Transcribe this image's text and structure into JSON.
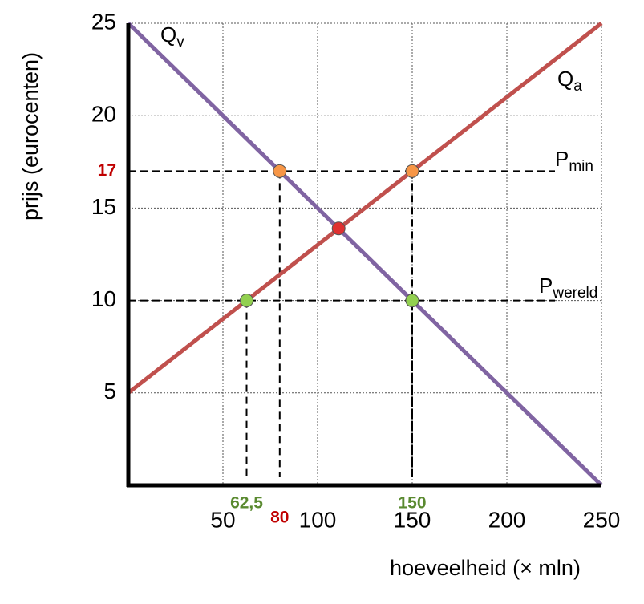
{
  "chart_data": {
    "type": "line",
    "x_label": "hoeveelheid (× mln)",
    "y_label": "prijs (eurocenten)",
    "xlim": [
      0,
      250
    ],
    "xticks": [
      50,
      100,
      150,
      200,
      250
    ],
    "ylim": [
      0,
      25
    ],
    "yticks": [
      5,
      10,
      15,
      20,
      25
    ],
    "grid": true,
    "series": [
      {
        "name": "Q",
        "subscript": "v",
        "color": "#8064a2",
        "x": [
          0,
          250
        ],
        "values": [
          25,
          0
        ]
      },
      {
        "name": "Q",
        "subscript": "a",
        "color": "#c0504d",
        "x": [
          0,
          250
        ],
        "values": [
          5,
          25
        ]
      }
    ],
    "price_lines": [
      {
        "name": "P",
        "subscript": "min",
        "value": 17
      },
      {
        "name": "P",
        "subscript": "wereld",
        "value": 10
      }
    ],
    "points": [
      {
        "x": 80,
        "y": 17,
        "color": "#f79646"
      },
      {
        "x": 150,
        "y": 17,
        "color": "#f79646"
      },
      {
        "x": 62.5,
        "y": 10,
        "color": "#92d050"
      },
      {
        "x": 150,
        "y": 10,
        "color": "#92d050"
      },
      {
        "x": 111.1,
        "y": 13.9,
        "color": "#e03030"
      }
    ],
    "y_annotations": [
      {
        "value": 17,
        "label": "17",
        "color": "#c00000"
      }
    ],
    "x_annotations": [
      {
        "value": 62.5,
        "label": "62,5",
        "color": "#5a8a30"
      },
      {
        "value": 80,
        "label": "80",
        "color": "#c00000"
      },
      {
        "value": 150,
        "label": "150",
        "color": "#5a8a30"
      }
    ]
  }
}
